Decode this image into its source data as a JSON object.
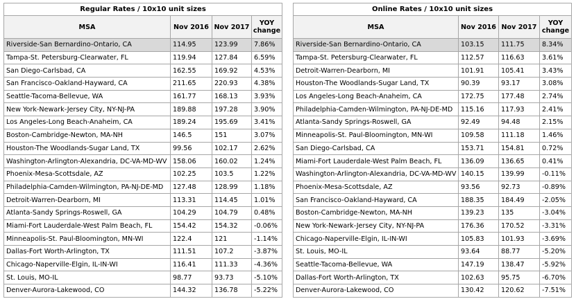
{
  "tables": [
    {
      "title": "Regular Rates / 10x10 unit sizes",
      "columns": [
        "MSA",
        "Nov 2016",
        "Nov 2017",
        "YOY change"
      ],
      "rows": [
        [
          "Riverside-San Bernardino-Ontario, CA",
          "114.95",
          "123.99",
          "7.86%"
        ],
        [
          "Tampa-St. Petersburg-Clearwater, FL",
          "119.94",
          "127.84",
          "6.59%"
        ],
        [
          "San Diego-Carlsbad, CA",
          "162.55",
          "169.92",
          "4.53%"
        ],
        [
          "San Francisco-Oakland-Hayward, CA",
          "211.65",
          "220.93",
          "4.38%"
        ],
        [
          "Seattle-Tacoma-Bellevue, WA",
          "161.77",
          "168.13",
          "3.93%"
        ],
        [
          "New York-Newark-Jersey City, NY-NJ-PA",
          "189.88",
          "197.28",
          "3.90%"
        ],
        [
          "Los Angeles-Long Beach-Anaheim, CA",
          "189.24",
          "195.69",
          "3.41%"
        ],
        [
          "Boston-Cambridge-Newton, MA-NH",
          "146.5",
          "151",
          "3.07%"
        ],
        [
          "Houston-The Woodlands-Sugar Land, TX",
          "99.56",
          "102.17",
          "2.62%"
        ],
        [
          "Washington-Arlington-Alexandria, DC-VA-MD-WV",
          "158.06",
          "160.02",
          "1.24%"
        ],
        [
          "Phoenix-Mesa-Scottsdale, AZ",
          "102.25",
          "103.5",
          "1.22%"
        ],
        [
          "Philadelphia-Camden-Wilmington, PA-NJ-DE-MD",
          "127.48",
          "128.99",
          "1.18%"
        ],
        [
          "Detroit-Warren-Dearborn, MI",
          "113.31",
          "114.45",
          "1.01%"
        ],
        [
          "Atlanta-Sandy Springs-Roswell, GA",
          "104.29",
          "104.79",
          "0.48%"
        ],
        [
          "Miami-Fort Lauderdale-West Palm Beach, FL",
          "154.42",
          "154.32",
          "-0.06%"
        ],
        [
          "Minneapolis-St. Paul-Bloomington, MN-WI",
          "122.4",
          "121",
          "-1.14%"
        ],
        [
          "Dallas-Fort Worth-Arlington, TX",
          "111.51",
          "107.2",
          "-3.87%"
        ],
        [
          "Chicago-Naperville-Elgin, IL-IN-WI",
          "116.41",
          "111.33",
          "-4.36%"
        ],
        [
          "St. Louis, MO-IL",
          "98.77",
          "93.73",
          "-5.10%"
        ],
        [
          "Denver-Aurora-Lakewood, CO",
          "144.32",
          "136.78",
          "-5.22%"
        ]
      ]
    },
    {
      "title": "Online Rates / 10x10 unit sizes",
      "columns": [
        "MSA",
        "Nov 2016",
        "Nov 2017",
        "YOY change"
      ],
      "rows": [
        [
          "Riverside-San Bernardino-Ontario, CA",
          "103.15",
          "111.75",
          "8.34%"
        ],
        [
          "Tampa-St. Petersburg-Clearwater, FL",
          "112.57",
          "116.63",
          "3.61%"
        ],
        [
          "Detroit-Warren-Dearborn, MI",
          "101.91",
          "105.41",
          "3.43%"
        ],
        [
          "Houston-The Woodlands-Sugar Land, TX",
          "90.39",
          "93.17",
          "3.08%"
        ],
        [
          "Los Angeles-Long Beach-Anaheim, CA",
          "172.75",
          "177.48",
          "2.74%"
        ],
        [
          "Philadelphia-Camden-Wilmington, PA-NJ-DE-MD",
          "115.16",
          "117.93",
          "2.41%"
        ],
        [
          "Atlanta-Sandy Springs-Roswell, GA",
          "92.49",
          "94.48",
          "2.15%"
        ],
        [
          "Minneapolis-St. Paul-Bloomington, MN-WI",
          "109.58",
          "111.18",
          "1.46%"
        ],
        [
          "San Diego-Carlsbad, CA",
          "153.71",
          "154.81",
          "0.72%"
        ],
        [
          "Miami-Fort Lauderdale-West Palm Beach, FL",
          "136.09",
          "136.65",
          "0.41%"
        ],
        [
          "Washington-Arlington-Alexandria, DC-VA-MD-WV",
          "140.15",
          "139.99",
          "-0.11%"
        ],
        [
          "Phoenix-Mesa-Scottsdale, AZ",
          "93.56",
          "92.73",
          "-0.89%"
        ],
        [
          "San Francisco-Oakland-Hayward, CA",
          "188.35",
          "184.49",
          "-2.05%"
        ],
        [
          "Boston-Cambridge-Newton, MA-NH",
          "139.23",
          "135",
          "-3.04%"
        ],
        [
          "New York-Newark-Jersey City, NY-NJ-PA",
          "176.36",
          "170.52",
          "-3.31%"
        ],
        [
          "Chicago-Naperville-Elgin, IL-IN-WI",
          "105.83",
          "101.93",
          "-3.69%"
        ],
        [
          "St. Louis, MO-IL",
          "93.64",
          "88.77",
          "-5.20%"
        ],
        [
          "Seattle-Tacoma-Bellevue, WA",
          "147.19",
          "138.47",
          "-5.92%"
        ],
        [
          "Dallas-Fort Worth-Arlington, TX",
          "102.63",
          "95.75",
          "-6.70%"
        ],
        [
          "Denver-Aurora-Lakewood, CO",
          "130.42",
          "120.62",
          "-7.51%"
        ]
      ]
    }
  ]
}
